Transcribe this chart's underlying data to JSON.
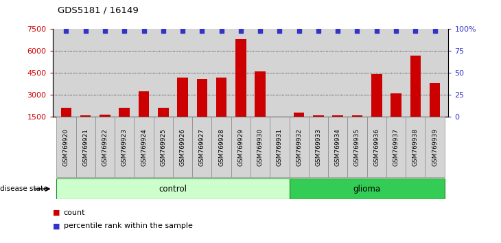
{
  "title": "GDS5181 / 16149",
  "samples": [
    "GSM769920",
    "GSM769921",
    "GSM769922",
    "GSM769923",
    "GSM769924",
    "GSM769925",
    "GSM769926",
    "GSM769927",
    "GSM769928",
    "GSM769929",
    "GSM769930",
    "GSM769931",
    "GSM769932",
    "GSM769933",
    "GSM769934",
    "GSM769935",
    "GSM769936",
    "GSM769937",
    "GSM769938",
    "GSM769939"
  ],
  "counts": [
    2100,
    1600,
    1650,
    2100,
    3250,
    2100,
    4200,
    4100,
    4200,
    6800,
    4600,
    1500,
    1800,
    1600,
    1600,
    1600,
    4400,
    3100,
    5700,
    3800
  ],
  "percentile_rank_value": 98,
  "n_control": 12,
  "n_glioma": 8,
  "bar_color": "#cc0000",
  "dot_color": "#3333cc",
  "ylim_left": [
    1500,
    7500
  ],
  "ylim_right": [
    0,
    100
  ],
  "yticks_left": [
    1500,
    3000,
    4500,
    6000,
    7500
  ],
  "yticks_right": [
    0,
    25,
    50,
    75,
    100
  ],
  "grid_lines": [
    3000,
    4500,
    6000
  ],
  "plot_bg_color": "#d4d4d4",
  "xtick_bg_color": "#d4d4d4",
  "control_light": "#ccffcc",
  "control_dark": "#66dd66",
  "glioma_color": "#33cc55",
  "white": "#ffffff"
}
